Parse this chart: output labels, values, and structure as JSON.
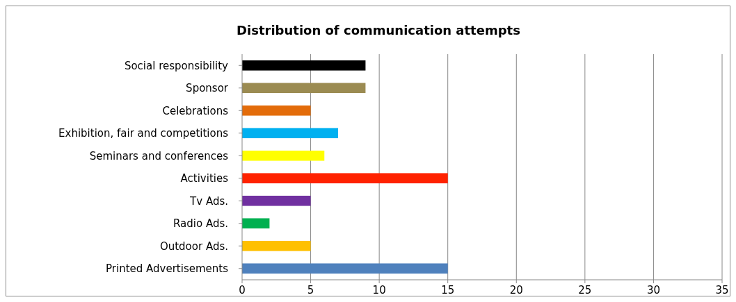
{
  "chart_data": {
    "type": "bar",
    "orientation": "horizontal",
    "title": "Distribution of communication attempts",
    "categories": [
      "Social responsibility",
      "Sponsor",
      "Celebrations",
      "Exhibition, fair and competitions",
      "Seminars and conferences",
      "Activities",
      "Tv Ads.",
      "Radio Ads.",
      "Outdoor Ads.",
      "Printed Advertisements"
    ],
    "values": [
      9,
      9,
      5,
      7,
      6,
      15,
      5,
      2,
      5,
      15
    ],
    "colors": [
      "#000000",
      "#9b8b52",
      "#e36c0a",
      "#00b0f0",
      "#ffff00",
      "#ff2200",
      "#7030a0",
      "#00b050",
      "#ffc000",
      "#4f81bd"
    ],
    "xlim": [
      0,
      35
    ],
    "xticks": [
      0,
      5,
      10,
      15,
      20,
      25,
      30,
      35
    ],
    "grid": "x"
  }
}
